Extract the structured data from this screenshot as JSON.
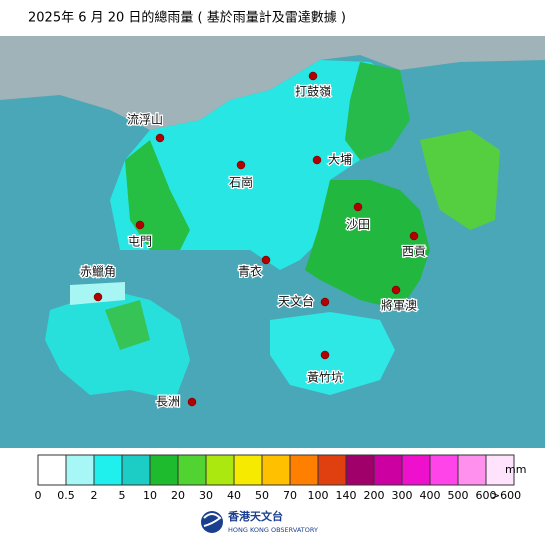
{
  "title": "2025年 6 月 20 日的總雨量 ( 基於雨量計及雷達數據 )",
  "stations": [
    {
      "label": "打鼓嶺"
    },
    {
      "label": "流浮山"
    },
    {
      "label": "石崗"
    },
    {
      "label": "大埔"
    },
    {
      "label": "屯門"
    },
    {
      "label": "沙田"
    },
    {
      "label": "西貢"
    },
    {
      "label": "青衣"
    },
    {
      "label": "赤鱲角"
    },
    {
      "label": "天文台"
    },
    {
      "label": "將軍澳"
    },
    {
      "label": "黃竹坑"
    },
    {
      "label": "長洲"
    }
  ],
  "legend": {
    "colors": [
      "#ffffff",
      "#a6f7f5",
      "#1ff0ee",
      "#1ccdc6",
      "#1fbb2e",
      "#51d431",
      "#aae810",
      "#f6ea00",
      "#ffc000",
      "#ff7f00",
      "#e04010",
      "#a0006a",
      "#cc00a0",
      "#ee10cc",
      "#ff44ea",
      "#ff90ee",
      "#ffe2fb"
    ],
    "labels": [
      "0",
      "0.5",
      "2",
      "5",
      "10",
      "20",
      "30",
      "40",
      "50",
      "70",
      "100",
      "140",
      "200",
      "300",
      "400",
      "500",
      "600",
      ">600"
    ],
    "unit": "mm"
  },
  "logo": {
    "name_zh": "香港天文台",
    "name_en": "HONG KONG OBSERVATORY"
  }
}
